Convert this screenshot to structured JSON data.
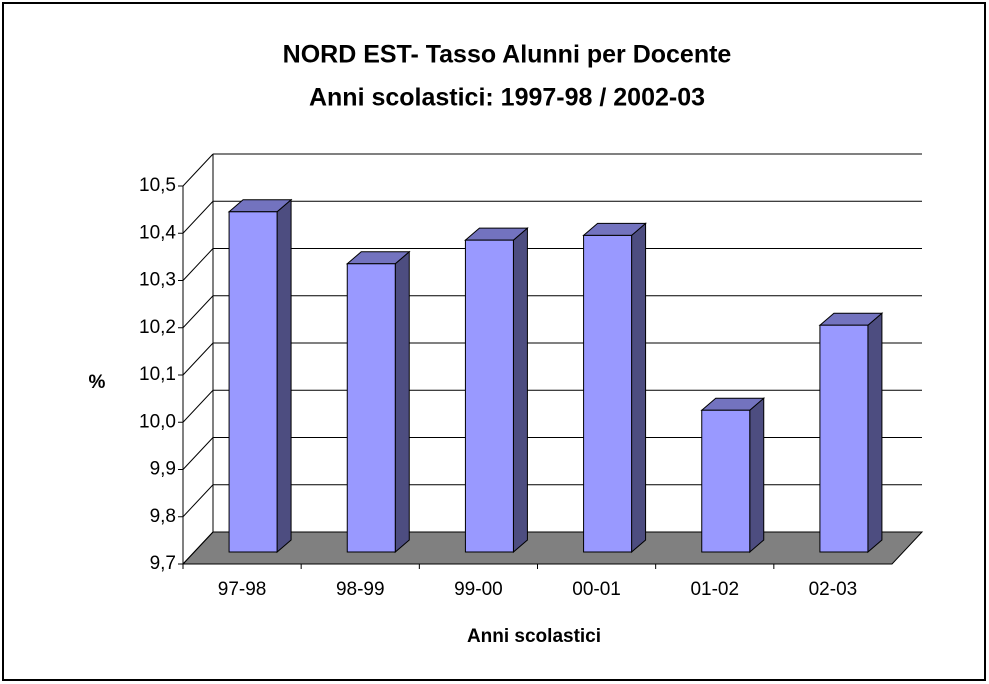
{
  "chart_data": {
    "type": "bar3d",
    "title": "NORD EST- Tasso Alunni per Docente",
    "subtitle": "Anni scolastici: 1997-98 / 2002-03",
    "x_label": "Anni scolastici",
    "y_label": "%",
    "categories": [
      "97-98",
      "98-99",
      "99-00",
      "00-01",
      "01-02",
      "02-03"
    ],
    "values": [
      10.42,
      10.31,
      10.36,
      10.37,
      10.0,
      10.18
    ],
    "color": "#9999ff",
    "ylim": [
      9.7,
      10.5
    ],
    "yticks": [
      {
        "value": 9.7,
        "label": "9,7"
      },
      {
        "value": 9.8,
        "label": "9,8"
      },
      {
        "value": 9.9,
        "label": "9,9"
      },
      {
        "value": 10.0,
        "label": "10,0"
      },
      {
        "value": 10.1,
        "label": "10,1"
      },
      {
        "value": 10.2,
        "label": "10,2"
      },
      {
        "value": 10.3,
        "label": "10,3"
      },
      {
        "value": 10.4,
        "label": "10,4"
      },
      {
        "value": 10.5,
        "label": "10,5"
      }
    ],
    "grid": true
  }
}
